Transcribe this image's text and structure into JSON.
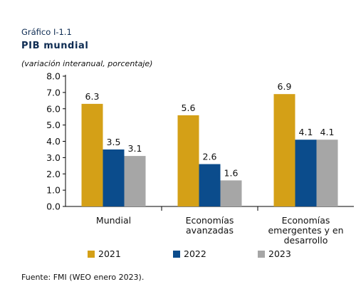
{
  "figure": {
    "kicker": "Gráfico I-1.1",
    "title": "PIB mundial",
    "subtitle": "(variación interanual, porcentaje)",
    "source": "Fuente: FMI (WEO enero 2023)."
  },
  "chart_data": {
    "type": "bar",
    "categories": [
      [
        "Mundial"
      ],
      [
        "Economías",
        "avanzadas"
      ],
      [
        "Economías",
        "emergentes y en",
        "desarrollo"
      ]
    ],
    "series": [
      {
        "name": "2021",
        "color": "#d4a017",
        "values": [
          6.3,
          5.6,
          6.9
        ]
      },
      {
        "name": "2022",
        "color": "#0b4c8c",
        "values": [
          3.5,
          2.6,
          4.1
        ]
      },
      {
        "name": "2023",
        "color": "#a6a6a6",
        "values": [
          3.1,
          1.6,
          4.1
        ]
      }
    ],
    "ylim": [
      0,
      8
    ],
    "yticks": [
      0,
      1,
      2,
      3,
      4,
      5,
      6,
      7,
      8
    ],
    "ytick_labels": [
      "0.0",
      "1.0",
      "2.0",
      "3.0",
      "4.0",
      "5.0",
      "6.0",
      "7.0",
      "8.0"
    ],
    "data_labels": [
      [
        "6.3",
        "5.6",
        "6.9"
      ],
      [
        "3.5",
        "2.6",
        "4.1"
      ],
      [
        "3.1",
        "1.6",
        "4.1"
      ]
    ],
    "grid": false,
    "legend_position": "bottom"
  }
}
